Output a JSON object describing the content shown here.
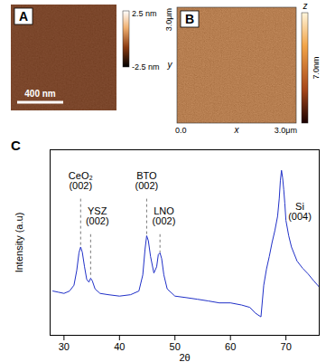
{
  "panels": {
    "A": {
      "label": "A",
      "scale_bar": "400 nm",
      "colorbar": {
        "max": "2.5 nm",
        "min": "-2.5 nm"
      }
    },
    "B": {
      "label": "B",
      "x_axis": {
        "label": "x",
        "start": "0.0",
        "end": "3.0μm"
      },
      "y_axis": {
        "label": "y",
        "end": "3.0μm"
      },
      "colorbar": {
        "label": "z",
        "max": "7.0nm"
      }
    }
  },
  "chart_data": {
    "type": "line",
    "panel_label": "C",
    "x_label": "2θ",
    "y_label": "Intensity (a.u)",
    "log": "y",
    "tick_labels": "x",
    "color": "#2030c8",
    "xlim": [
      27.5,
      76
    ],
    "xticks": [
      30,
      40,
      50,
      60,
      70
    ],
    "ylim": [
      1,
      10000
    ],
    "x": [
      28,
      29,
      30,
      31,
      31.8,
      32.3,
      32.7,
      33.0,
      33.3,
      33.7,
      34.1,
      34.5,
      34.8,
      35.1,
      35.6,
      36.5,
      38,
      40,
      42,
      43.5,
      44.2,
      44.6,
      44.9,
      45.2,
      45.6,
      46.2,
      46.7,
      47.0,
      47.3,
      47.6,
      48.0,
      48.6,
      50,
      52,
      54,
      56,
      58,
      60,
      62,
      63.5,
      64.5,
      65.5,
      66.0,
      66.5,
      67.0,
      67.5,
      68.0,
      68.5,
      68.8,
      69.0,
      69.2,
      69.4,
      69.6,
      69.8,
      70.0,
      70.5,
      71,
      72,
      73,
      74,
      75,
      76
    ],
    "values": [
      9,
      8.5,
      8,
      9,
      12,
      25,
      60,
      80,
      62,
      30,
      16,
      14,
      17,
      15,
      10,
      8,
      7.5,
      7,
      7.5,
      9,
      20,
      70,
      140,
      110,
      50,
      22,
      30,
      55,
      60,
      45,
      20,
      10,
      7,
      6.5,
      6,
      5.5,
      5,
      5,
      4.5,
      4,
      3,
      2.5,
      12,
      27,
      50,
      100,
      180,
      370,
      900,
      2200,
      3600,
      2500,
      1400,
      700,
      300,
      140,
      80,
      40,
      28,
      21,
      15,
      11
    ],
    "annotations": [
      {
        "text": "CeO₂\n(002)",
        "x": 33.0,
        "label_x": 33.0,
        "y": 2150,
        "line_style": "dashed"
      },
      {
        "text": "YSZ\n(002)",
        "x": 34.8,
        "label_x": 36.0,
        "y": 370,
        "line_style": "dashed"
      },
      {
        "text": "BTO\n(002)",
        "x": 44.9,
        "label_x": 44.9,
        "y": 2150,
        "line_style": "dashed"
      },
      {
        "text": "LNO\n(002)",
        "x": 47.3,
        "label_x": 48.0,
        "y": 370,
        "line_style": "dashed"
      },
      {
        "text": "Si\n(004)",
        "x": 69.2,
        "label_x": 72.5,
        "y": 460
      }
    ]
  }
}
